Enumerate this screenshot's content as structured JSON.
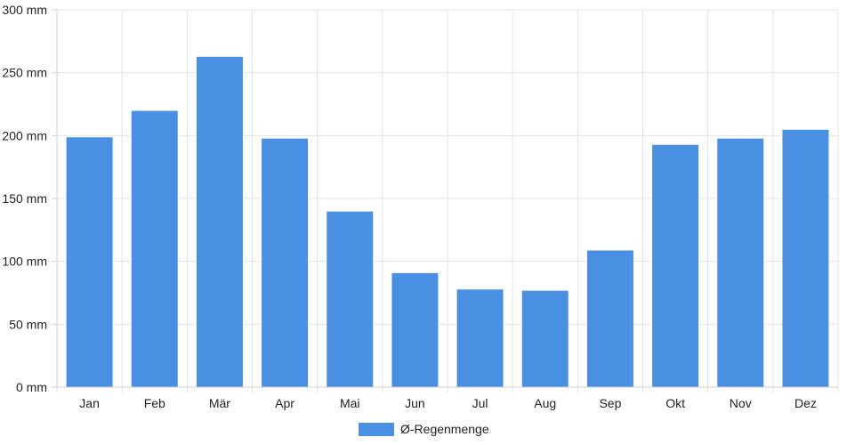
{
  "chart_data": {
    "type": "bar",
    "categories": [
      "Jan",
      "Feb",
      "Mär",
      "Apr",
      "Mai",
      "Jun",
      "Jul",
      "Aug",
      "Sep",
      "Okt",
      "Nov",
      "Dez"
    ],
    "series": [
      {
        "name": "Ø-Regenmenge",
        "values": [
          199,
          220,
          263,
          198,
          140,
          91,
          78,
          77,
          109,
          193,
          198,
          205
        ],
        "color": "#4a90e2"
      }
    ],
    "ylim": [
      0,
      300
    ],
    "y_ticks": [
      0,
      50,
      100,
      150,
      200,
      250,
      300
    ],
    "y_unit": "mm",
    "grid": true,
    "legend_position": "bottom-center"
  }
}
